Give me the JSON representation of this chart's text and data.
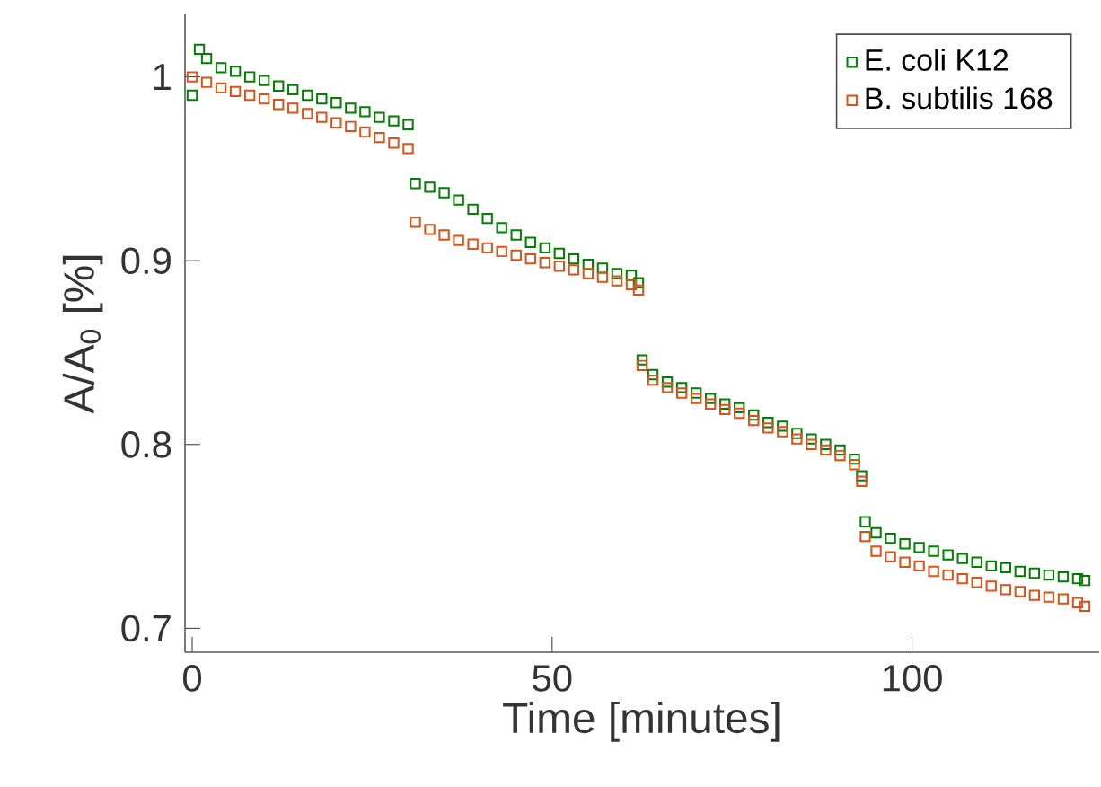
{
  "chart_data": {
    "type": "scatter",
    "xlabel": "Time [minutes]",
    "ylabel": "A/A$_{0}$ [%]",
    "xlim": [
      -1,
      126
    ],
    "ylim": [
      0.687,
      1.034
    ],
    "xticks": [
      0,
      50,
      100
    ],
    "yticks": [
      0.7,
      0.8,
      0.9,
      1
    ],
    "marker": "square",
    "legend": "top right",
    "grid": false,
    "series": [
      {
        "name": "E. coli K12",
        "color": "#008000",
        "x": [
          0,
          1,
          2,
          4,
          6,
          8,
          10,
          12,
          14,
          16,
          18,
          20,
          22,
          24,
          26,
          28,
          30,
          31,
          33,
          35,
          37,
          39,
          41,
          43,
          45,
          47,
          49,
          51,
          53,
          55,
          57,
          59,
          61,
          62,
          62.5,
          64,
          66,
          68,
          70,
          72,
          74,
          76,
          78,
          80,
          82,
          84,
          86,
          88,
          90,
          92,
          93,
          93.5,
          95,
          97,
          99,
          101,
          103,
          105,
          107,
          109,
          111,
          113,
          115,
          117,
          119,
          121,
          123,
          124
        ],
        "values": [
          0.99,
          1.015,
          1.01,
          1.005,
          1.003,
          1.0,
          0.998,
          0.995,
          0.993,
          0.99,
          0.988,
          0.986,
          0.983,
          0.981,
          0.978,
          0.976,
          0.974,
          0.942,
          0.94,
          0.937,
          0.933,
          0.928,
          0.923,
          0.918,
          0.914,
          0.91,
          0.907,
          0.904,
          0.901,
          0.898,
          0.896,
          0.893,
          0.892,
          0.888,
          0.846,
          0.838,
          0.834,
          0.831,
          0.828,
          0.825,
          0.822,
          0.82,
          0.816,
          0.812,
          0.81,
          0.806,
          0.803,
          0.8,
          0.797,
          0.792,
          0.783,
          0.758,
          0.752,
          0.749,
          0.746,
          0.744,
          0.742,
          0.74,
          0.738,
          0.736,
          0.734,
          0.733,
          0.731,
          0.73,
          0.729,
          0.728,
          0.727,
          0.726
        ]
      },
      {
        "name": "B. subtilis 168",
        "color": "#d95319",
        "x": [
          0,
          2,
          4,
          6,
          8,
          10,
          12,
          14,
          16,
          18,
          20,
          22,
          24,
          26,
          28,
          30,
          31,
          33,
          35,
          37,
          39,
          41,
          43,
          45,
          47,
          49,
          51,
          53,
          55,
          57,
          59,
          61,
          62,
          62.5,
          64,
          66,
          68,
          70,
          72,
          74,
          76,
          78,
          80,
          82,
          84,
          86,
          88,
          90,
          92,
          93,
          93.5,
          95,
          97,
          99,
          101,
          103,
          105,
          107,
          109,
          111,
          113,
          115,
          117,
          119,
          121,
          123,
          124
        ],
        "values": [
          1.0,
          0.997,
          0.994,
          0.992,
          0.99,
          0.988,
          0.985,
          0.983,
          0.98,
          0.978,
          0.975,
          0.973,
          0.97,
          0.967,
          0.964,
          0.961,
          0.921,
          0.917,
          0.914,
          0.911,
          0.909,
          0.907,
          0.905,
          0.903,
          0.901,
          0.899,
          0.897,
          0.895,
          0.893,
          0.891,
          0.889,
          0.887,
          0.884,
          0.843,
          0.835,
          0.831,
          0.828,
          0.825,
          0.822,
          0.819,
          0.817,
          0.813,
          0.809,
          0.807,
          0.803,
          0.8,
          0.797,
          0.794,
          0.789,
          0.78,
          0.75,
          0.742,
          0.739,
          0.736,
          0.734,
          0.731,
          0.729,
          0.727,
          0.725,
          0.723,
          0.721,
          0.72,
          0.718,
          0.717,
          0.716,
          0.714,
          0.712
        ]
      }
    ]
  }
}
